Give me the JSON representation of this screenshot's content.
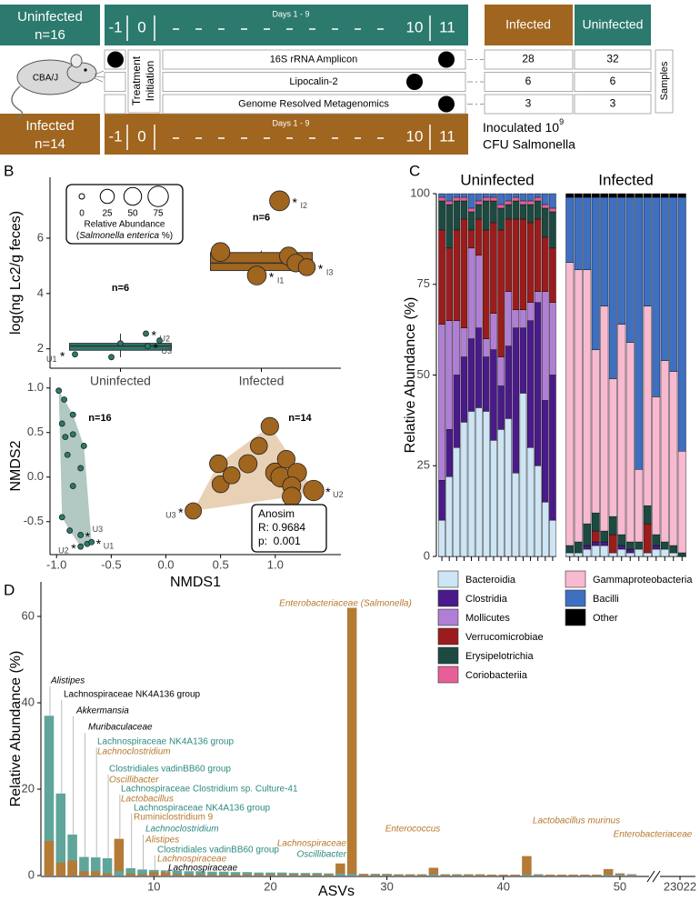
{
  "panel_labels": [
    "A",
    "B",
    "C",
    "D"
  ],
  "diagram": {
    "groups": [
      {
        "name": "Uninfected",
        "n": "n=16",
        "color": "#2b7a6d"
      },
      {
        "name": "Infected",
        "n": "n=14",
        "color": "#a0651f"
      }
    ],
    "timeline": {
      "days": [
        "-1",
        "0",
        "10",
        "11"
      ],
      "span_label": "Days 1 - 9"
    },
    "mouse_label": "CBA/J",
    "treatment_label": [
      "Treatment",
      "Initiation"
    ],
    "assays": [
      {
        "name": "16S rRNA Amplicon",
        "infected": 28,
        "uninfected": 32
      },
      {
        "name": "Lipocalin-2",
        "infected": 6,
        "uninfected": 6
      },
      {
        "name": "Genome Resolved Metagenomics",
        "infected": 3,
        "uninfected": 3
      }
    ],
    "samples_label": "Samples",
    "inoculation": [
      "Inoculated 10",
      "9",
      "CFU Salmonella"
    ]
  },
  "chart_data": [
    {
      "type": "box",
      "ylabel": "log(ng Lc2/g feces)",
      "categories": [
        "Uninfected",
        "Infected"
      ],
      "ylim": [
        1.3,
        8.2
      ],
      "yticks": [
        2,
        4,
        6
      ],
      "boxes": [
        {
          "whislo": 1.7,
          "q1": 1.95,
          "med": 2.1,
          "q3": 2.2,
          "whishi": 2.55,
          "color": "#2b7a6d"
        },
        {
          "whislo": 4.65,
          "q1": 4.83,
          "med": 5.1,
          "q3": 5.48,
          "whishi": 5.55,
          "color": "#a0651f"
        }
      ],
      "points": [
        {
          "values": [
            1.8,
            2.55,
            2.3,
            2.1,
            2.2,
            1.7
          ],
          "sizes": [
            0,
            0,
            0,
            0,
            0,
            0
          ],
          "labels": [
            "U1",
            "U2",
            null,
            "U3",
            null,
            null
          ]
        },
        {
          "values": [
            7.35,
            5.5,
            5.35,
            5.1,
            4.65,
            4.95
          ],
          "sizes": [
            70,
            60,
            55,
            50,
            60,
            45
          ],
          "labels": [
            "I2",
            null,
            null,
            null,
            "I1",
            "I3"
          ]
        }
      ],
      "label_marker": "*",
      "n_labels": [
        "n=6",
        "n=6"
      ],
      "size_legend": {
        "sizes": [
          0,
          25,
          50,
          75
        ],
        "title": "Relative Abundance",
        "subtitle": [
          "(",
          "Salmonella enterica",
          " %)"
        ]
      }
    },
    {
      "type": "scatter",
      "xlabel": "NMDS1",
      "ylabel": "NMDS2",
      "xlim": [
        -1.06,
        1.6
      ],
      "ylim": [
        -0.87,
        1.12
      ],
      "xticks": [
        -1.0,
        -0.5,
        0.0,
        0.5,
        1.0
      ],
      "yticks": [
        -0.5,
        0.0,
        0.5,
        1.0
      ],
      "xtick_labels": [
        "-1.0",
        "-0.5",
        "0.0",
        "0.5",
        "1.0"
      ],
      "ytick_labels": [
        "-0.5",
        "0.0",
        "0.5",
        "1.0"
      ],
      "series": [
        {
          "name": "Uninfected",
          "color": "#2b7a6d",
          "hull": "#9fbab3",
          "x": [
            -0.98,
            -0.93,
            -0.85,
            -0.95,
            -0.92,
            -0.85,
            -0.75,
            -0.9,
            -0.78,
            -0.85,
            -0.95,
            -0.88,
            -0.78,
            -0.72,
            -0.78,
            -0.68
          ],
          "y": [
            0.97,
            0.87,
            0.7,
            0.6,
            0.45,
            0.48,
            0.35,
            0.25,
            0.1,
            -0.1,
            -0.45,
            -0.6,
            -0.65,
            -0.75,
            -0.78,
            -0.73
          ],
          "sizes": [
            0,
            0,
            0,
            0,
            0,
            0,
            0,
            0,
            0,
            0,
            0,
            0,
            0,
            0,
            0,
            0
          ],
          "labels": [
            null,
            null,
            null,
            null,
            null,
            null,
            null,
            null,
            null,
            null,
            null,
            null,
            "U3",
            null,
            "U2",
            "U1"
          ],
          "n_label": "n=16"
        },
        {
          "name": "Infected",
          "color": "#a0651f",
          "hull": "#e3c6a3",
          "x": [
            0.95,
            0.85,
            0.25,
            0.48,
            0.75,
            0.5,
            1.0,
            1.1,
            1.05,
            1.2,
            1.15,
            1.35,
            1.15,
            0.6
          ],
          "y": [
            0.57,
            0.35,
            -0.38,
            0.15,
            0.15,
            -0.08,
            0.05,
            0.2,
            0.0,
            0.05,
            -0.1,
            -0.15,
            -0.22,
            0.02
          ],
          "sizes": [
            50,
            45,
            40,
            50,
            55,
            45,
            65,
            50,
            70,
            60,
            55,
            75,
            60,
            45
          ],
          "labels": [
            null,
            null,
            "U3",
            null,
            null,
            null,
            null,
            null,
            null,
            null,
            null,
            "U2",
            "U1",
            null
          ],
          "n_label": "n=14"
        }
      ],
      "label_marker": "*",
      "annotation": [
        "Anosim",
        "R: 0.9684",
        "p:  0.001"
      ]
    },
    {
      "type": "stacked_bar",
      "ylabel": "Relative Abundance (%)",
      "ylim": [
        0,
        100
      ],
      "yticks": [
        0,
        25,
        50,
        75,
        100
      ],
      "series": [
        {
          "name": "Bacteroidia",
          "color": "#cde5f5"
        },
        {
          "name": "Clostridia",
          "color": "#4a1a8a"
        },
        {
          "name": "Mollicutes",
          "color": "#b07fd5"
        },
        {
          "name": "Verrucomicrobiae",
          "color": "#9b1c1c"
        },
        {
          "name": "Erysipelotrichia",
          "color": "#1c4a40"
        },
        {
          "name": "Coriobacteriia",
          "color": "#e65f99"
        },
        {
          "name": "Gammaproteobacteria",
          "color": "#f7bad0"
        },
        {
          "name": "Bacilli",
          "color": "#3e6fc0"
        },
        {
          "name": "Other",
          "color": "#000000"
        }
      ],
      "facets": [
        {
          "title": "Uninfected",
          "values": [
            [
              10,
              22,
              30,
              37,
              40,
              41,
              40,
              32,
              35,
              38,
              23,
              45,
              30,
              25,
              15,
              10
            ],
            [
              11,
              13,
              20,
              18,
              20,
              22,
              15,
              25,
              12,
              20,
              40,
              18,
              35,
              45,
              28,
              40
            ],
            [
              43,
              30,
              15,
              8,
              25,
              20,
              5,
              10,
              8,
              15,
              5,
              5,
              5,
              3,
              30,
              20
            ],
            [
              26,
              20,
              25,
              30,
              5,
              10,
              30,
              25,
              35,
              20,
              25,
              25,
              22,
              20,
              15,
              15
            ],
            [
              8,
              12,
              8,
              5,
              5,
              4,
              8,
              6,
              6,
              4,
              5,
              4,
              5,
              5,
              8,
              10
            ],
            [
              1,
              1,
              1,
              1,
              1,
              1,
              1,
              1,
              1,
              1,
              1,
              1,
              1,
              1,
              1,
              1
            ],
            [
              0,
              0,
              0,
              0,
              0,
              0,
              0,
              0,
              0,
              0,
              0,
              0,
              0,
              0,
              0,
              0
            ],
            [
              1,
              2,
              1,
              1,
              4,
              2,
              1,
              1,
              3,
              2,
              1,
              2,
              2,
              1,
              3,
              4
            ],
            [
              0,
              0,
              0,
              0,
              0,
              0,
              0,
              0,
              0,
              0,
              0,
              0,
              0,
              0,
              0,
              0
            ]
          ]
        },
        {
          "title": "Infected",
          "values": [
            [
              1,
              1,
              2,
              3,
              3,
              1,
              2,
              1,
              2,
              1,
              2,
              2,
              1,
              0
            ],
            [
              0,
              0,
              1,
              1,
              1,
              0,
              1,
              1,
              0,
              0,
              1,
              0,
              0,
              0
            ],
            [
              0,
              0,
              0,
              0,
              0,
              0,
              0,
              0,
              0,
              0,
              0,
              0,
              0,
              0
            ],
            [
              0,
              0,
              0,
              3,
              0,
              5,
              0,
              0,
              0,
              8,
              0,
              0,
              0,
              0
            ],
            [
              2,
              3,
              6,
              5,
              3,
              5,
              3,
              2,
              2,
              5,
              3,
              2,
              2,
              1
            ],
            [
              0,
              0,
              0,
              0,
              0,
              0,
              0,
              0,
              0,
              0,
              0,
              0,
              0,
              0
            ],
            [
              78,
              75,
              70,
              45,
              62,
              38,
              58,
              55,
              20,
              55,
              38,
              50,
              48,
              28
            ],
            [
              18,
              20,
              20,
              42,
              30,
              50,
              35,
              40,
              75,
              30,
              55,
              45,
              48,
              70
            ],
            [
              1,
              1,
              1,
              1,
              1,
              1,
              1,
              1,
              1,
              1,
              1,
              1,
              1,
              1
            ]
          ]
        }
      ]
    },
    {
      "type": "bar",
      "xlabel": "ASVs",
      "ylabel": "Relative Abundance (%)",
      "x": [
        1,
        2,
        3,
        4,
        5,
        6,
        7,
        8,
        9,
        10,
        11,
        12,
        13,
        14,
        15,
        16,
        17,
        18,
        19,
        20,
        21,
        22,
        23,
        24,
        25,
        26,
        27,
        28,
        29,
        30,
        31,
        32,
        33,
        34,
        35,
        36,
        37,
        38,
        39,
        40,
        41,
        42,
        43,
        44,
        45,
        46,
        47,
        48,
        49,
        50,
        51
      ],
      "xlim": [
        0.3,
        51.8
      ],
      "ylim": [
        0,
        68
      ],
      "xticks": [
        10,
        20,
        30,
        40,
        50
      ],
      "yticks": [
        0,
        20,
        40,
        60
      ],
      "break_tick": 23022,
      "series": [
        {
          "name": "Uninfected",
          "color": "#5fa59b",
          "values": [
            37,
            19,
            9.5,
            4.3,
            4.2,
            4.0,
            1.0,
            1.7,
            1.4,
            1.3,
            1.2,
            1.1,
            1.0,
            1.0,
            0.9,
            0.9,
            0.8,
            0.8,
            0.7,
            0.7,
            0.7,
            0.6,
            0.6,
            0.6,
            0.5,
            0.5,
            0.4,
            0.4,
            0.4,
            0.4,
            0.3,
            0.3,
            0.3,
            0.3,
            0.3,
            0.3,
            0.3,
            0.3,
            0.2,
            0.2,
            0.2,
            0.2,
            0.2,
            0.2,
            0.2,
            0.2,
            0.2,
            0.2,
            0.2,
            0.2,
            0.2
          ]
        },
        {
          "name": "Infected",
          "color": "#b47a36",
          "values": [
            8,
            3,
            3.5,
            1,
            1,
            0.5,
            8.5,
            0.5,
            0.3,
            0.8,
            0.8,
            0.3,
            0.3,
            0.2,
            0.2,
            0.2,
            0.2,
            0.2,
            0.2,
            0.2,
            0.2,
            0.2,
            0.2,
            0.2,
            0.2,
            2.8,
            62,
            0.3,
            0.2,
            0.2,
            0.2,
            0.2,
            0.2,
            1.8,
            0.2,
            0.2,
            0.2,
            0.2,
            0.2,
            0.2,
            0.2,
            4.5,
            0.3,
            0.2,
            0.2,
            0.2,
            0.2,
            0.2,
            1.5,
            0.5,
            0.3
          ]
        }
      ],
      "annotations": [
        {
          "text": "Alistipes",
          "color": "#000000",
          "italic": true
        },
        {
          "text": "Lachnospiraceae NK4A136 group",
          "color": "#000000",
          "italic": false
        },
        {
          "text": "Akkermansia",
          "color": "#000000",
          "italic": true
        },
        {
          "text": "Muribaculaceae",
          "color": "#000000",
          "italic": true
        },
        {
          "text": "Lachnospiraceae NK4A136 group",
          "color": "#2b8a7f",
          "italic": false
        },
        {
          "text": "Lachnoclostridium",
          "color": "#b7782d",
          "italic": true
        },
        {
          "text": "Clostridiales vadinBB60 group",
          "color": "#2b8a7f",
          "italic": false
        },
        {
          "text": "Oscillibacter",
          "color": "#b7782d",
          "italic": true
        },
        {
          "text": "Lachnospiraceae Clostridium sp. Culture-41",
          "color": "#2b8a7f",
          "italic": false
        },
        {
          "text": "Lactobacillus",
          "color": "#b7782d",
          "italic": true
        },
        {
          "text": "Lachnospiraceae NK4A136 group",
          "color": "#2b8a7f",
          "italic": false
        },
        {
          "text": "Ruminiclostridium 9",
          "color": "#b7782d",
          "italic": false
        },
        {
          "text": "Lachnoclostridium",
          "color": "#2b8a7f",
          "italic": true
        },
        {
          "text": "Alistipes",
          "color": "#b7782d",
          "italic": true
        },
        {
          "text": "Clostridiales vadinBB60 group",
          "color": "#2b8a7f",
          "italic": false
        },
        {
          "text": "Lachnospiraceae",
          "color": "#b7782d",
          "italic": true
        },
        {
          "text": "Lachnospiraceae",
          "color": "#000000",
          "italic": true
        },
        {
          "text": "Enterobacteriaceae (Salmonella)",
          "color": "#b7782d",
          "italic": true
        },
        {
          "text": "Lachnospiraceae",
          "color": "#b7782d",
          "italic": true
        },
        {
          "text": "Oscillibacter",
          "color": "#2b8a7f",
          "italic": true
        },
        {
          "text": "Enterococcus",
          "color": "#b7782d",
          "italic": true
        },
        {
          "text": "Lactobacillus murinus",
          "color": "#b7782d",
          "italic": true
        },
        {
          "text": "Enterobacteriaceae",
          "color": "#b7782d",
          "italic": true
        }
      ]
    }
  ]
}
